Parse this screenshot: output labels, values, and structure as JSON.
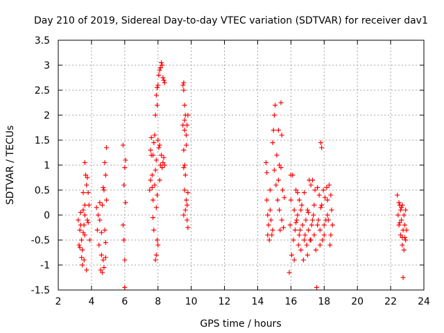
{
  "chart_data": {
    "type": "scatter",
    "title": "Day 210 of 2019, Sidereal Day-to-day VTEC variation (SDTVAR) for receiver dav1",
    "xlabel": "GPS time / hours",
    "ylabel": "SDTVAR / TECUs",
    "xlim": [
      2,
      24
    ],
    "ylim": [
      -1.5,
      3.5
    ],
    "xticks": [
      "2",
      "4",
      "6",
      "8",
      "10",
      "12",
      "14",
      "16",
      "18",
      "20",
      "22",
      "24"
    ],
    "yticks": [
      "-1.5",
      "-1",
      "-0.5",
      "0",
      "0.5",
      "1",
      "1.5",
      "2",
      "2.5",
      "3",
      "3.5"
    ],
    "grid": true,
    "marker": "+",
    "series_color": "#ff0000",
    "series": [
      {
        "name": "SDTVAR",
        "points": [
          [
            3.2,
            -0.1
          ],
          [
            3.25,
            -0.6
          ],
          [
            3.3,
            -0.3
          ],
          [
            3.35,
            0.05
          ],
          [
            3.4,
            -0.5
          ],
          [
            3.45,
            -0.7
          ],
          [
            3.5,
            0.1
          ],
          [
            3.55,
            -0.2
          ],
          [
            3.6,
            0.2
          ],
          [
            3.6,
            0.0
          ],
          [
            3.55,
            -0.9
          ],
          [
            3.45,
            -1.0
          ],
          [
            3.3,
            -0.65
          ],
          [
            3.6,
            -0.4
          ],
          [
            3.7,
            0.6
          ],
          [
            3.75,
            -0.1
          ],
          [
            3.8,
            0.45
          ],
          [
            3.85,
            0.2
          ],
          [
            3.9,
            -0.5
          ],
          [
            3.7,
            -1.1
          ],
          [
            3.6,
            1.05
          ],
          [
            3.65,
            0.8
          ],
          [
            3.75,
            0.75
          ],
          [
            3.5,
            0.45
          ],
          [
            3.4,
            -0.85
          ],
          [
            3.8,
            -0.15
          ],
          [
            3.5,
            -0.35
          ],
          [
            3.35,
            -0.2
          ],
          [
            4.3,
            0.15
          ],
          [
            4.35,
            -0.3
          ],
          [
            4.4,
            0.0
          ],
          [
            4.45,
            -0.6
          ],
          [
            4.5,
            0.25
          ],
          [
            4.55,
            -1.1
          ],
          [
            4.6,
            -0.8
          ],
          [
            4.65,
            -1.15
          ],
          [
            4.7,
            -0.9
          ],
          [
            4.75,
            0.5
          ],
          [
            4.8,
            1.05
          ],
          [
            4.8,
            -0.3
          ],
          [
            4.85,
            0.8
          ],
          [
            4.85,
            -0.55
          ],
          [
            4.9,
            1.35
          ],
          [
            4.9,
            0.3
          ],
          [
            4.75,
            -1.05
          ],
          [
            4.6,
            -0.35
          ],
          [
            4.7,
            0.55
          ],
          [
            4.5,
            -0.1
          ],
          [
            4.85,
            -0.85
          ],
          [
            4.65,
            0.2
          ],
          [
            5.9,
            1.4
          ],
          [
            5.9,
            -0.2
          ],
          [
            5.95,
            0.6
          ],
          [
            6.0,
            -1.45
          ],
          [
            6.05,
            0.25
          ],
          [
            6.0,
            0.95
          ],
          [
            6.05,
            1.1
          ],
          [
            5.95,
            -0.5
          ],
          [
            6.0,
            -0.9
          ],
          [
            7.5,
            0.5
          ],
          [
            7.55,
            1.3
          ],
          [
            7.6,
            1.55
          ],
          [
            7.65,
            0.8
          ],
          [
            7.7,
            1.2
          ],
          [
            7.7,
            0.3
          ],
          [
            7.75,
            1.45
          ],
          [
            7.8,
            1.6
          ],
          [
            7.8,
            0.6
          ],
          [
            7.85,
            2.0
          ],
          [
            7.85,
            0.9
          ],
          [
            7.9,
            2.4
          ],
          [
            7.9,
            1.1
          ],
          [
            7.95,
            2.2
          ],
          [
            7.95,
            0.4
          ],
          [
            8.0,
            2.6
          ],
          [
            8.0,
            1.5
          ],
          [
            8.0,
            -0.6
          ],
          [
            7.9,
            -0.8
          ],
          [
            7.95,
            -0.5
          ],
          [
            8.05,
            2.8
          ],
          [
            8.05,
            1.35
          ],
          [
            8.1,
            2.9
          ],
          [
            8.1,
            0.7
          ],
          [
            8.15,
            2.95
          ],
          [
            8.15,
            1.0
          ],
          [
            8.2,
            3.05
          ],
          [
            8.2,
            1.2
          ],
          [
            8.25,
            3.0
          ],
          [
            8.25,
            0.95
          ],
          [
            8.3,
            2.75
          ],
          [
            8.3,
            1.05
          ],
          [
            8.35,
            2.7
          ],
          [
            8.35,
            1.15
          ],
          [
            8.4,
            2.65
          ],
          [
            8.4,
            1.0
          ],
          [
            7.6,
            1.2
          ],
          [
            7.65,
            0.55
          ],
          [
            7.75,
            -0.3
          ],
          [
            7.95,
            2.55
          ],
          [
            8.1,
            1.4
          ],
          [
            7.7,
            -0.05
          ],
          [
            7.55,
            0.7
          ],
          [
            7.9,
            0.15
          ],
          [
            7.85,
            -0.9
          ],
          [
            9.5,
            2.6
          ],
          [
            9.5,
            1.8
          ],
          [
            9.55,
            2.5
          ],
          [
            9.55,
            1.3
          ],
          [
            9.6,
            2.2
          ],
          [
            9.6,
            1.7
          ],
          [
            9.6,
            0.5
          ],
          [
            9.65,
            2.0
          ],
          [
            9.65,
            0.1
          ],
          [
            9.7,
            1.6
          ],
          [
            9.7,
            0.3
          ],
          [
            9.75,
            1.8
          ],
          [
            9.75,
            -0.1
          ],
          [
            9.8,
            2.0
          ],
          [
            9.8,
            0.45
          ],
          [
            9.8,
            -0.25
          ],
          [
            9.55,
            0.95
          ],
          [
            9.6,
            1.0
          ],
          [
            9.65,
            0.8
          ],
          [
            9.55,
            0.0
          ],
          [
            9.7,
            1.4
          ],
          [
            9.75,
            0.2
          ],
          [
            9.55,
            2.65
          ],
          [
            9.6,
            1.9
          ],
          [
            14.5,
            1.05
          ],
          [
            14.55,
            0.3
          ],
          [
            14.6,
            0.0
          ],
          [
            14.65,
            -0.2
          ],
          [
            14.7,
            -0.5
          ],
          [
            14.75,
            0.1
          ],
          [
            14.8,
            -0.1
          ],
          [
            14.85,
            -0.4
          ],
          [
            14.9,
            1.45
          ],
          [
            14.95,
            1.7
          ],
          [
            15.0,
            2.0
          ],
          [
            15.0,
            0.9
          ],
          [
            15.05,
            2.2
          ],
          [
            15.1,
            0.6
          ],
          [
            15.15,
            1.2
          ],
          [
            15.2,
            0.3
          ],
          [
            15.25,
            1.7
          ],
          [
            15.25,
            0.7
          ],
          [
            15.3,
            0.1
          ],
          [
            15.35,
            -0.3
          ],
          [
            15.4,
            2.25
          ],
          [
            15.4,
            0.95
          ],
          [
            15.45,
            1.6
          ],
          [
            15.5,
            0.5
          ],
          [
            15.55,
            -0.25
          ],
          [
            15.6,
            0.35
          ],
          [
            14.55,
            0.85
          ],
          [
            14.6,
            -0.4
          ],
          [
            14.75,
            0.5
          ],
          [
            14.9,
            -0.3
          ],
          [
            15.3,
            1.0
          ],
          [
            15.45,
            -0.1
          ],
          [
            15.9,
            -1.15
          ],
          [
            15.95,
            -0.2
          ],
          [
            16.0,
            0.3
          ],
          [
            16.05,
            -0.8
          ],
          [
            16.1,
            0.8
          ],
          [
            16.15,
            -0.5
          ],
          [
            16.2,
            0.1
          ],
          [
            16.25,
            -0.3
          ],
          [
            16.3,
            0.5
          ],
          [
            16.35,
            -0.1
          ],
          [
            16.4,
            0.0
          ],
          [
            16.45,
            -0.6
          ],
          [
            16.5,
            0.3
          ],
          [
            16.55,
            -0.3
          ],
          [
            16.6,
            -0.7
          ],
          [
            16.65,
            0.2
          ],
          [
            16.7,
            -0.2
          ],
          [
            16.75,
            -0.9
          ],
          [
            16.8,
            0.45
          ],
          [
            16.85,
            -0.4
          ],
          [
            16.9,
            -0.1
          ],
          [
            16.95,
            -0.6
          ],
          [
            17.0,
            0.1
          ],
          [
            17.05,
            -0.3
          ],
          [
            17.1,
            0.7
          ],
          [
            17.15,
            -0.5
          ],
          [
            17.2,
            0.6
          ],
          [
            17.25,
            -0.2
          ],
          [
            17.3,
            0.7
          ],
          [
            17.35,
            0.0
          ],
          [
            17.4,
            -0.4
          ],
          [
            17.45,
            0.5
          ],
          [
            17.5,
            -0.7
          ],
          [
            17.55,
            -1.45
          ],
          [
            17.6,
            0.55
          ],
          [
            17.65,
            -0.1
          ],
          [
            17.7,
            0.4
          ],
          [
            17.75,
            -0.3
          ],
          [
            17.8,
            1.45
          ],
          [
            17.85,
            0.2
          ],
          [
            17.9,
            -0.5
          ],
          [
            17.95,
            0.5
          ],
          [
            18.0,
            -0.2
          ],
          [
            18.05,
            0.35
          ],
          [
            18.1,
            -0.1
          ],
          [
            18.15,
            0.55
          ],
          [
            18.2,
            0.3
          ],
          [
            18.25,
            -0.1
          ],
          [
            18.3,
            0.6
          ],
          [
            18.35,
            -0.6
          ],
          [
            18.4,
            0.4
          ],
          [
            18.45,
            0.1
          ],
          [
            18.5,
            -0.2
          ],
          [
            16.0,
            0.8
          ],
          [
            16.2,
            -0.9
          ],
          [
            16.4,
            0.45
          ],
          [
            16.6,
            0.1
          ],
          [
            16.8,
            -0.5
          ],
          [
            17.0,
            -0.8
          ],
          [
            17.2,
            -0.5
          ],
          [
            17.4,
            0.2
          ],
          [
            17.6,
            -0.2
          ],
          [
            17.8,
            0.15
          ],
          [
            18.0,
            -0.4
          ],
          [
            18.2,
            0.0
          ],
          [
            18.4,
            -0.4
          ],
          [
            16.3,
            -0.15
          ],
          [
            17.05,
            0.05
          ],
          [
            17.75,
            -0.6
          ],
          [
            17.85,
            1.35
          ],
          [
            16.5,
            -0.4
          ],
          [
            17.3,
            -0.1
          ],
          [
            22.4,
            0.4
          ],
          [
            22.45,
            0.0
          ],
          [
            22.5,
            -0.2
          ],
          [
            22.55,
            0.2
          ],
          [
            22.6,
            -0.4
          ],
          [
            22.6,
            0.1
          ],
          [
            22.65,
            -0.1
          ],
          [
            22.7,
            -0.6
          ],
          [
            22.7,
            0.2
          ],
          [
            22.75,
            -0.3
          ],
          [
            22.8,
            0.0
          ],
          [
            22.8,
            -0.7
          ],
          [
            22.85,
            -0.2
          ],
          [
            22.9,
            0.1
          ],
          [
            22.9,
            -0.5
          ],
          [
            22.95,
            -0.3
          ],
          [
            22.75,
            -1.25
          ],
          [
            22.5,
            0.25
          ],
          [
            22.65,
            0.15
          ],
          [
            22.85,
            -0.45
          ],
          [
            22.55,
            -0.15
          ],
          [
            22.7,
            -0.45
          ]
        ]
      }
    ]
  }
}
